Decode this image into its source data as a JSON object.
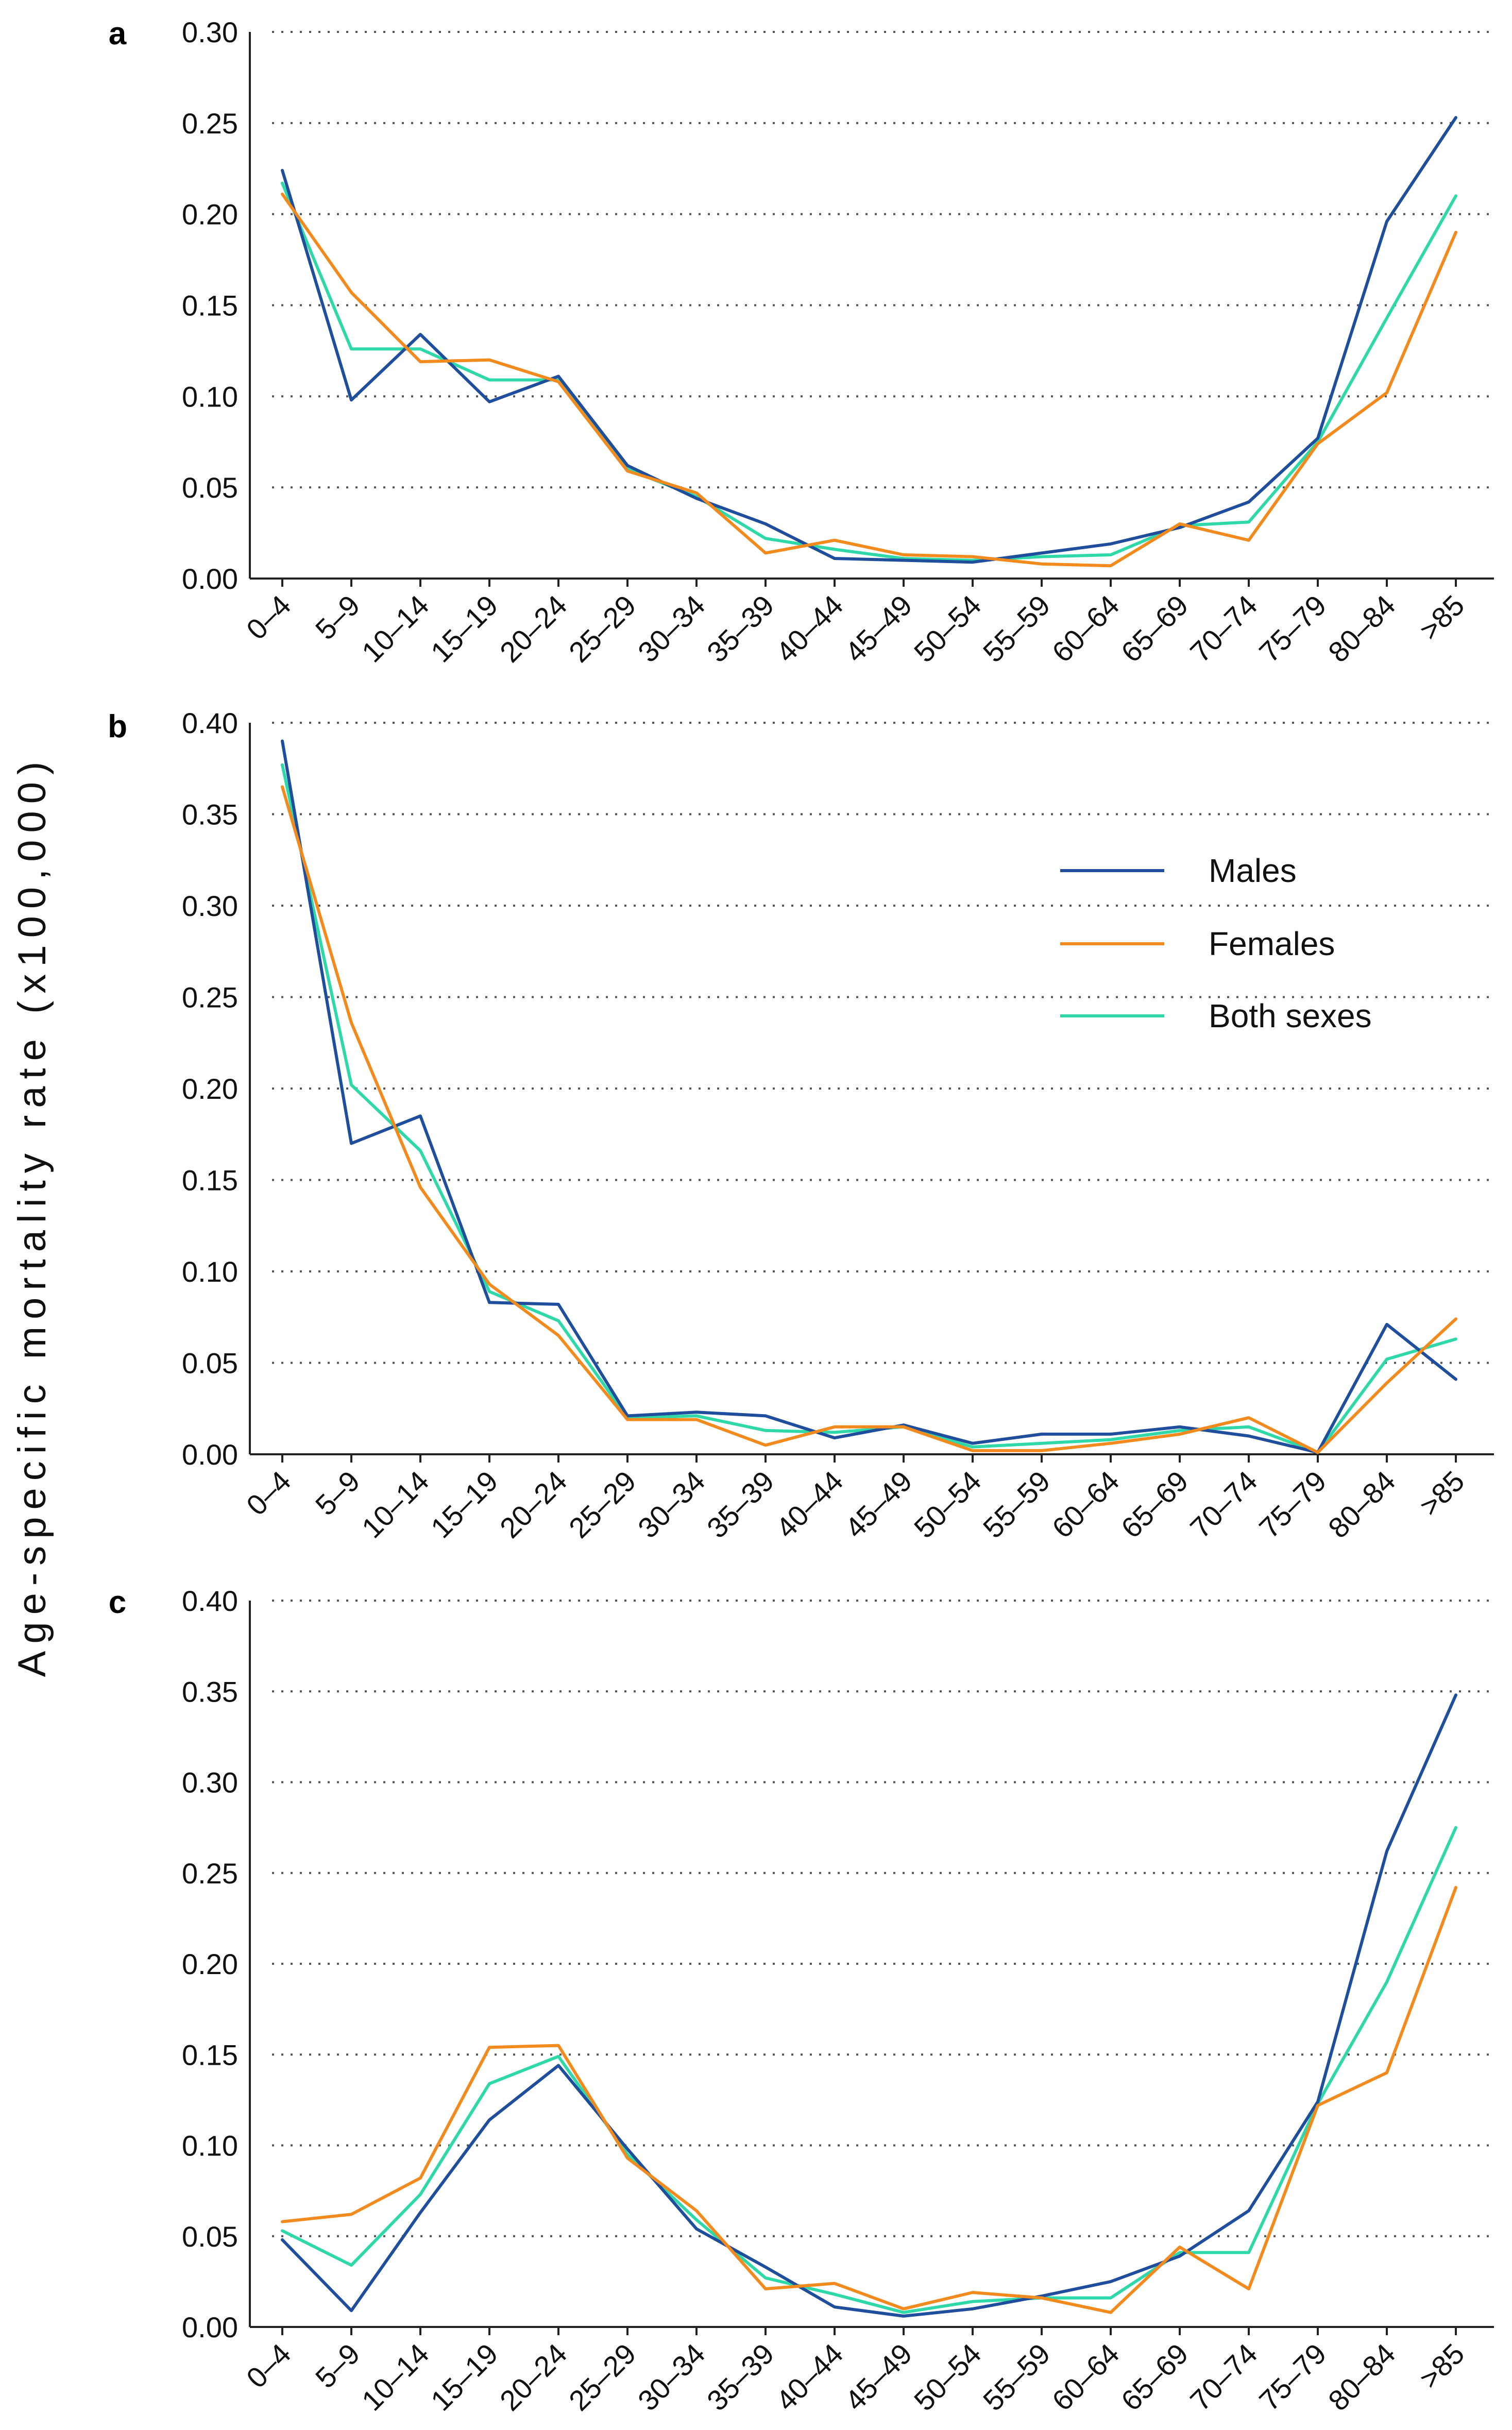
{
  "y_axis_label": "Age-specific mortality rate (x100,000)",
  "colors": {
    "males": "#1f4e9c",
    "females": "#f28a1e",
    "both": "#2fd8a8"
  },
  "legend": [
    "Males",
    "Females",
    "Both sexes"
  ],
  "chart_data": [
    {
      "type": "line",
      "panel": "a",
      "categories": [
        "0–4",
        "5–9",
        "10–14",
        "15–19",
        "20–24",
        "25–29",
        "30–34",
        "35–39",
        "40–44",
        "45–49",
        "50–54",
        "55–59",
        "60–64",
        "65–69",
        "70–74",
        "75–79",
        "80–84",
        ">85"
      ],
      "ylim": [
        0,
        0.3
      ],
      "yticks": [
        "0.00",
        "0.05",
        "0.10",
        "0.15",
        "0.20",
        "0.25",
        "0.30"
      ],
      "series": [
        {
          "name": "Males",
          "values": [
            0.224,
            0.098,
            0.134,
            0.097,
            0.111,
            0.062,
            0.044,
            0.03,
            0.011,
            0.01,
            0.009,
            0.014,
            0.019,
            0.028,
            0.042,
            0.077,
            0.196,
            0.253
          ]
        },
        {
          "name": "Females",
          "values": [
            0.211,
            0.157,
            0.119,
            0.12,
            0.108,
            0.059,
            0.047,
            0.014,
            0.021,
            0.013,
            0.012,
            0.008,
            0.007,
            0.03,
            0.021,
            0.074,
            0.102,
            0.19
          ]
        },
        {
          "name": "Both sexes",
          "values": [
            0.217,
            0.126,
            0.126,
            0.109,
            0.109,
            0.06,
            0.045,
            0.022,
            0.016,
            0.011,
            0.01,
            0.012,
            0.013,
            0.029,
            0.031,
            0.075,
            0.143,
            0.21
          ]
        }
      ]
    },
    {
      "type": "line",
      "panel": "b",
      "categories": [
        "0–4",
        "5–9",
        "10–14",
        "15–19",
        "20–24",
        "25–29",
        "30–34",
        "35–39",
        "40–44",
        "45–49",
        "50–54",
        "55–59",
        "60–64",
        "65–69",
        "70–74",
        "75–79",
        "80–84",
        ">85"
      ],
      "ylim": [
        0,
        0.4
      ],
      "yticks": [
        "0.00",
        "0.05",
        "0.10",
        "0.15",
        "0.20",
        "0.25",
        "0.30",
        "0.35",
        "0.40"
      ],
      "series": [
        {
          "name": "Males",
          "values": [
            0.39,
            0.17,
            0.185,
            0.083,
            0.082,
            0.021,
            0.023,
            0.021,
            0.009,
            0.016,
            0.006,
            0.011,
            0.011,
            0.015,
            0.01,
            0.001,
            0.071,
            0.041
          ]
        },
        {
          "name": "Females",
          "values": [
            0.365,
            0.236,
            0.146,
            0.093,
            0.065,
            0.019,
            0.019,
            0.005,
            0.015,
            0.015,
            0.002,
            0.002,
            0.006,
            0.011,
            0.02,
            0.001,
            0.039,
            0.074
          ]
        },
        {
          "name": "Both sexes",
          "values": [
            0.377,
            0.202,
            0.166,
            0.089,
            0.073,
            0.02,
            0.021,
            0.013,
            0.012,
            0.015,
            0.004,
            0.006,
            0.008,
            0.013,
            0.015,
            0.001,
            0.052,
            0.063
          ]
        }
      ]
    },
    {
      "type": "line",
      "panel": "c",
      "categories": [
        "0–4",
        "5–9",
        "10–14",
        "15–19",
        "20–24",
        "25–29",
        "30–34",
        "35–39",
        "40–44",
        "45–49",
        "50–54",
        "55–59",
        "60–64",
        "65–69",
        "70–74",
        "75–79",
        "80–84",
        ">85"
      ],
      "ylim": [
        0,
        0.4
      ],
      "yticks": [
        "0.00",
        "0.05",
        "0.10",
        "0.15",
        "0.20",
        "0.25",
        "0.30",
        "0.35",
        "0.40"
      ],
      "series": [
        {
          "name": "Males",
          "values": [
            0.048,
            0.009,
            0.063,
            0.114,
            0.144,
            0.098,
            0.054,
            0.033,
            0.011,
            0.006,
            0.01,
            0.017,
            0.025,
            0.039,
            0.064,
            0.124,
            0.262,
            0.348
          ]
        },
        {
          "name": "Females",
          "values": [
            0.058,
            0.062,
            0.082,
            0.154,
            0.155,
            0.093,
            0.064,
            0.021,
            0.024,
            0.01,
            0.019,
            0.016,
            0.008,
            0.044,
            0.021,
            0.122,
            0.14,
            0.242
          ]
        },
        {
          "name": "Both sexes",
          "values": [
            0.053,
            0.034,
            0.073,
            0.134,
            0.149,
            0.095,
            0.059,
            0.027,
            0.018,
            0.008,
            0.014,
            0.016,
            0.016,
            0.041,
            0.041,
            0.123,
            0.19,
            0.275
          ]
        }
      ]
    }
  ]
}
